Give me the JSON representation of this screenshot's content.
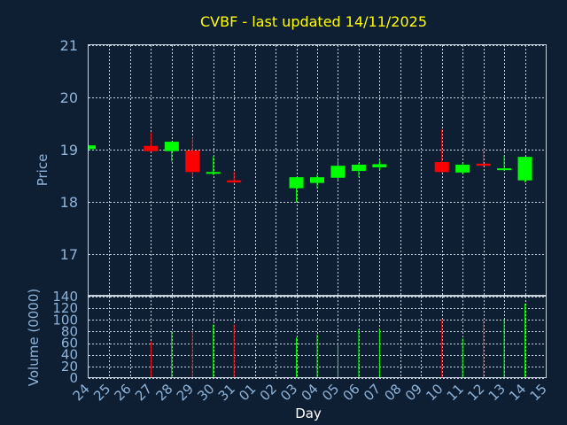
{
  "chart_data": {
    "type": "candlestick",
    "title": "CVBF - last updated 14/11/2025",
    "xlabel": "Day",
    "price_panel": {
      "ylabel": "Price",
      "ylim": [
        16.2,
        21
      ],
      "yticks": [
        17,
        18,
        19,
        20,
        21
      ],
      "grid": true
    },
    "volume_panel": {
      "ylabel": "Volume (0000)",
      "ylim": [
        0,
        140
      ],
      "yticks": [
        0,
        20,
        40,
        60,
        80,
        100,
        120,
        140
      ],
      "grid": true
    },
    "x_tick_labels": [
      "24",
      "25",
      "26",
      "27",
      "28",
      "29",
      "30",
      "31",
      "01",
      "02",
      "03",
      "04",
      "05",
      "06",
      "07",
      "08",
      "09",
      "10",
      "11",
      "12",
      "13",
      "14",
      "15"
    ],
    "candles": [
      {
        "day": "24",
        "open": 19.01,
        "high": 19.09,
        "low": 18.99,
        "close": 19.08,
        "volume": 0
      },
      {
        "day": "27",
        "open": 19.07,
        "high": 19.33,
        "low": 18.96,
        "close": 18.97,
        "volume": 63
      },
      {
        "day": "28",
        "open": 18.97,
        "high": 19.16,
        "low": 18.77,
        "close": 19.15,
        "volume": 80
      },
      {
        "day": "29",
        "open": 18.98,
        "high": 19.23,
        "low": 18.47,
        "close": 18.57,
        "volume": 80
      },
      {
        "day": "30",
        "open": 18.54,
        "high": 18.87,
        "low": 18.51,
        "close": 18.57,
        "volume": 92
      },
      {
        "day": "31",
        "open": 18.41,
        "high": 18.58,
        "low": 18.36,
        "close": 18.37,
        "volume": 92
      },
      {
        "day": "03",
        "open": 18.26,
        "high": 18.47,
        "low": 17.99,
        "close": 18.47,
        "volume": 70
      },
      {
        "day": "04",
        "open": 18.36,
        "high": 18.52,
        "low": 18.25,
        "close": 18.47,
        "volume": 75
      },
      {
        "day": "05",
        "open": 18.46,
        "high": 18.79,
        "low": 18.41,
        "close": 18.69,
        "volume": 60
      },
      {
        "day": "06",
        "open": 18.59,
        "high": 18.75,
        "low": 18.47,
        "close": 18.71,
        "volume": 84
      },
      {
        "day": "07",
        "open": 18.66,
        "high": 18.79,
        "low": 18.61,
        "close": 18.72,
        "volume": 84
      },
      {
        "day": "10",
        "open": 18.76,
        "high": 19.39,
        "low": 18.56,
        "close": 18.57,
        "volume": 101
      },
      {
        "day": "11",
        "open": 18.56,
        "high": 18.75,
        "low": 18.53,
        "close": 18.71,
        "volume": 68
      },
      {
        "day": "12",
        "open": 18.73,
        "high": 18.99,
        "low": 18.67,
        "close": 18.69,
        "volume": 100
      },
      {
        "day": "13",
        "open": 18.61,
        "high": 18.89,
        "low": 18.59,
        "close": 18.64,
        "volume": 101
      },
      {
        "day": "14",
        "open": 18.41,
        "high": 18.86,
        "low": 18.37,
        "close": 18.86,
        "volume": 128
      }
    ]
  },
  "colors": {
    "background": "#0f1f33",
    "up": "#00ff00",
    "down": "#ff0000",
    "title": "#ffff00",
    "axis_text": "#8fb3d9",
    "grid": "#c8d2de"
  }
}
